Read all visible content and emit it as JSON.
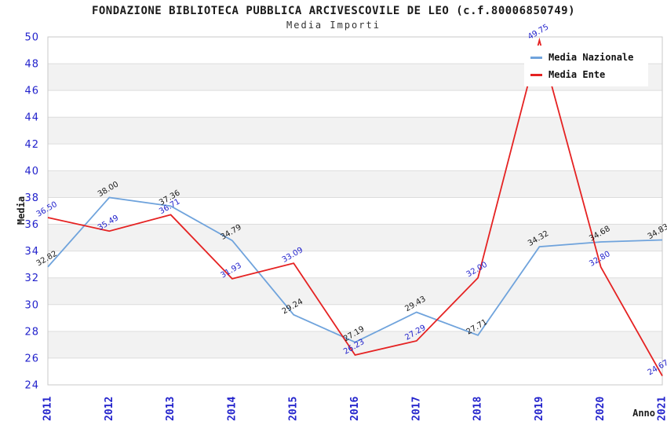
{
  "header": {
    "title": "FONDAZIONE BIBLIOTECA PUBBLICA ARCIVESCOVILE DE LEO (c.f.80006850749)",
    "subtitle": "Media Importi"
  },
  "chart_data": {
    "type": "line",
    "x": [
      2011,
      2012,
      2013,
      2014,
      2015,
      2016,
      2017,
      2018,
      2019,
      2020,
      2021
    ],
    "series": [
      {
        "name": "Media Nazionale",
        "color": "#6FA3DC",
        "label_color": "#1a1a1a",
        "values": [
          32.82,
          38.0,
          37.36,
          34.79,
          29.24,
          27.19,
          29.43,
          27.71,
          34.32,
          34.68,
          34.83
        ]
      },
      {
        "name": "Media Ente",
        "color": "#E52222",
        "label_color": "#2222CC",
        "values": [
          36.5,
          35.49,
          36.71,
          31.93,
          33.09,
          26.23,
          27.29,
          32.0,
          49.75,
          32.8,
          24.67
        ]
      }
    ],
    "xlabel": "Anno",
    "ylabel": "Media",
    "ylim": [
      24,
      50
    ],
    "ytick_step": 2,
    "yticks": [
      24,
      26,
      28,
      30,
      32,
      34,
      36,
      38,
      40,
      42,
      44,
      46,
      48,
      50
    ],
    "legend_position": "top-right",
    "grid": "horizontal-bands-alternating",
    "band_color": "#F2F2F2",
    "gridline_color": "#DDDDDD",
    "plot_border_color": "#C8C8C8",
    "axis_tick_label_color": "#2222CC",
    "point_labels_shown": true
  }
}
